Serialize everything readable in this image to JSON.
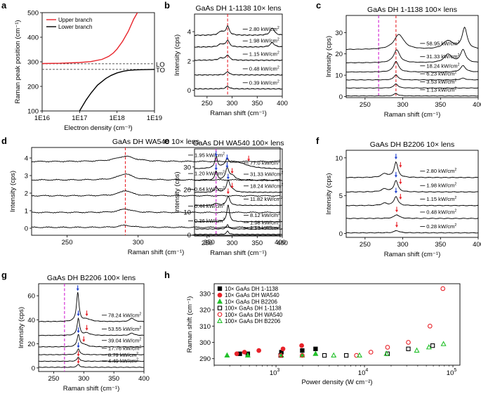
{
  "chart_data": [
    {
      "id": "a",
      "type": "line",
      "panel_label": "a",
      "title": "",
      "xlabel": "Electron density (cm⁻³)",
      "ylabel": "Raman peak position (cm⁻¹)",
      "xscale": "log",
      "xlim": [
        1e+16,
        1e+19
      ],
      "ylim": [
        100,
        500
      ],
      "xticks": [
        1e+16,
        1e+17,
        1e+18,
        1e+19
      ],
      "xtick_labels": [
        "1E16",
        "1E17",
        "1E18",
        "1E19"
      ],
      "yticks": [
        100,
        200,
        300,
        400,
        500
      ],
      "ytick_labels": [
        "100",
        "200",
        "300",
        "400",
        "500"
      ],
      "legend": [
        "Upper branch",
        "Lower branch"
      ],
      "legend_position": "top-left",
      "series": [
        {
          "name": "Upper branch",
          "color": "#e8232a",
          "x": [
            1e+16,
            3e+16,
            1e+17,
            2e+17,
            4e+17,
            6e+17,
            8e+17,
            1e+18,
            1.4e+18,
            2e+18,
            2.8e+18,
            3.5e+18
          ],
          "y": [
            293,
            294,
            297,
            301,
            310,
            322,
            336,
            352,
            383,
            424,
            474,
            500
          ]
        },
        {
          "name": "Lower branch",
          "color": "#000000",
          "x": [
            1e+17,
            1.5e+17,
            2e+17,
            3e+17,
            5e+17,
            7e+17,
            1e+18,
            1.5e+18,
            2e+18,
            3e+18,
            5e+18,
            1e+19
          ],
          "y": [
            100,
            145,
            172,
            205,
            232,
            245,
            255,
            262,
            265,
            267,
            268,
            269
          ]
        }
      ],
      "hlines": [
        {
          "label": "LO",
          "y": 292
        },
        {
          "label": "TO",
          "y": 269
        }
      ]
    },
    {
      "id": "b",
      "type": "line",
      "panel_label": "b",
      "title": "GaAs DH 1-1138 10× lens",
      "xlabel": "Raman shift (cm⁻¹)",
      "ylabel": "Intensity (cps)",
      "xlim": [
        225,
        400
      ],
      "ylim": [
        -0.4,
        5.2
      ],
      "xticks": [
        250,
        300,
        350,
        400
      ],
      "xtick_labels": [
        "250",
        "300",
        "350",
        "400"
      ],
      "yticks": [
        0,
        2,
        4
      ],
      "ytick_labels": [
        "0",
        "2",
        "4"
      ],
      "vlines": [
        {
          "x": 291,
          "color": "#e8232a"
        }
      ],
      "series": [
        {
          "label": "0.39 kW/cm",
          "offset": 0.1,
          "peaks": [
            [
              291,
              0.18,
              4
            ]
          ]
        },
        {
          "label": "0.48 kW/cm",
          "offset": 1.05,
          "peaks": [
            [
              291,
              0.22,
              4
            ]
          ]
        },
        {
          "label": "1.15 kW/cm",
          "offset": 2.05,
          "peaks": [
            [
              291,
              0.35,
              4
            ],
            [
              278,
              0.15,
              6
            ]
          ]
        },
        {
          "label": "1.98 kW/cm",
          "offset": 2.95,
          "peaks": [
            [
              291,
              0.45,
              4
            ],
            [
              278,
              0.2,
              6
            ],
            [
              380,
              0.3,
              5
            ]
          ]
        },
        {
          "label": "2.80 kW/cm",
          "offset": 3.75,
          "peaks": [
            [
              291,
              0.6,
              4
            ],
            [
              278,
              0.25,
              6
            ],
            [
              380,
              0.5,
              5
            ]
          ]
        }
      ]
    },
    {
      "id": "c",
      "type": "line",
      "panel_label": "c",
      "title": "GaAs DH 1-1138 100× lens",
      "xlabel": "Raman shift (cm⁻¹)",
      "ylabel": "Intensity (cps)",
      "xlim": [
        225,
        400
      ],
      "ylim": [
        -0.5,
        38
      ],
      "xticks": [
        250,
        300,
        350,
        400
      ],
      "xtick_labels": [
        "250",
        "300",
        "350",
        "400"
      ],
      "yticks": [
        0,
        10,
        20,
        30
      ],
      "ytick_labels": [
        "0",
        "10",
        "20",
        "30"
      ],
      "vlines": [
        {
          "x": 268,
          "color": "#d21fd2"
        },
        {
          "x": 291,
          "color": "#e8232a"
        }
      ],
      "series": [
        {
          "label": "1.13 kW/cm",
          "offset": 0.3,
          "peaks": [
            [
              291,
              1.2,
              3
            ]
          ]
        },
        {
          "label": "3.53 kW/cm",
          "offset": 4.0,
          "peaks": [
            [
              291,
              2.0,
              3
            ]
          ]
        },
        {
          "label": "6.23 kW/cm",
          "offset": 7.8,
          "peaks": [
            [
              291,
              2.5,
              3
            ],
            [
              380,
              0.8,
              4
            ]
          ]
        },
        {
          "label": "18.24 kW/cm",
          "offset": 11.5,
          "peaks": [
            [
              291,
              5,
              4
            ],
            [
              380,
              3,
              4
            ]
          ]
        },
        {
          "label": "31.33 kW/cm",
          "offset": 15.8,
          "peaks": [
            [
              292,
              6,
              5
            ],
            [
              360,
              4,
              6
            ],
            [
              380,
              6,
              4
            ]
          ]
        },
        {
          "label": "58.95 kW/cm",
          "offset": 22.0,
          "peaks": [
            [
              295,
              7,
              8
            ],
            [
              360,
              4,
              8
            ],
            [
              382,
              10,
              4
            ]
          ]
        }
      ]
    },
    {
      "id": "d",
      "type": "line",
      "panel_label": "d",
      "title": "GaAs DH WA540 10× lens",
      "xlabel": "Raman shift (cm⁻¹)",
      "ylabel": "Intensity (cps)",
      "xlim": [
        225,
        400
      ],
      "ylim": [
        -0.4,
        4.6
      ],
      "xticks": [
        250,
        300,
        350,
        400
      ],
      "xtick_labels": [
        "250",
        "300",
        "350",
        "400"
      ],
      "yticks": [
        0,
        1,
        2,
        3,
        4
      ],
      "ytick_labels": [
        "0",
        "1",
        "2",
        "3",
        "4"
      ],
      "vlines": [
        {
          "x": 291,
          "color": "#e8232a"
        }
      ],
      "series": [
        {
          "label": "0.36 kW/cm",
          "offset": 0.05,
          "peaks": [
            [
              291,
              0.12,
              5
            ]
          ]
        },
        {
          "label": "0.44 kW/cm",
          "offset": 0.9,
          "peaks": [
            [
              291,
              0.2,
              5
            ]
          ]
        },
        {
          "label": "0.64 kW/cm",
          "offset": 1.85,
          "peaks": [
            [
              291,
              0.3,
              5
            ]
          ]
        },
        {
          "label": "1.20 kW/cm",
          "offset": 2.75,
          "peaks": [
            [
              291,
              0.35,
              6
            ]
          ]
        },
        {
          "label": "1.95 kW/cm",
          "offset": 3.8,
          "peaks": [
            [
              291,
              0.3,
              8
            ]
          ]
        }
      ]
    },
    {
      "id": "e",
      "type": "line",
      "panel_label": "e",
      "title": "GaAs DH WA540 100× lens",
      "xlabel": "Raman shift (cm⁻¹)",
      "ylabel": "Intensity (cps)",
      "xlim": [
        225,
        400
      ],
      "ylim": [
        -0.5,
        38
      ],
      "xticks": [
        250,
        300,
        350,
        400
      ],
      "xtick_labels": [
        "250",
        "300",
        "350",
        "400"
      ],
      "yticks": [
        0,
        10,
        20,
        30
      ],
      "ytick_labels": [
        "0",
        "10",
        "20",
        "30"
      ],
      "vlines": [
        {
          "x": 268,
          "color": "#d21fd2"
        }
      ],
      "series": [
        {
          "label": "1.13 kW/cm",
          "offset": 0.2,
          "peaks": [
            [
              291,
              1.5,
              2.5
            ]
          ]
        },
        {
          "label": "1.98 kW/cm",
          "offset": 2.6,
          "peaks": [
            [
              291,
              2.0,
              2.5
            ]
          ]
        },
        {
          "label": "8.12 kW/cm",
          "offset": 5.8,
          "peaks": [
            [
              292,
              7.5,
              3
            ]
          ]
        },
        {
          "label": "11.82 kW/cm",
          "offset": 13.0,
          "peaks": [
            [
              292,
              4,
              4
            ],
            [
              268,
              1,
              4
            ]
          ]
        },
        {
          "label": "18.24 kW/cm",
          "offset": 18.8,
          "peaks": [
            [
              292,
              5,
              4
            ],
            [
              268,
              2.5,
              3
            ],
            [
              300,
              1,
              6
            ]
          ]
        },
        {
          "label": "31.33 kW/cm",
          "offset": 24.0,
          "peaks": [
            [
              290,
              5,
              4
            ],
            [
              268,
              4,
              3
            ],
            [
              300,
              2,
              8
            ]
          ]
        },
        {
          "label": "77.0 kW/cm",
          "offset": 29.0,
          "peaks": [
            [
              290,
              3,
              4
            ],
            [
              268,
              5,
              3
            ],
            [
              310,
              3,
              25
            ]
          ]
        }
      ]
    },
    {
      "id": "f",
      "type": "line",
      "panel_label": "f",
      "title": "GaAs DH B2206 10× lens",
      "xlabel": "Raman shift (cm⁻¹)",
      "ylabel": "Intensity (cps)",
      "xlim": [
        225,
        400
      ],
      "ylim": [
        -0.5,
        11
      ],
      "xticks": [
        250,
        300,
        350,
        400
      ],
      "xtick_labels": [
        "250",
        "300",
        "350",
        "400"
      ],
      "yticks": [
        0,
        5,
        10
      ],
      "ytick_labels": [
        "0",
        "5",
        "10"
      ],
      "series": [
        {
          "label": "0.28 kW/cm",
          "offset": 0.1,
          "peaks": [
            [
              292,
              0.3,
              4
            ]
          ]
        },
        {
          "label": "0.48 kW/cm",
          "offset": 2.0,
          "peaks": [
            [
              292,
              0.5,
              4
            ]
          ]
        },
        {
          "label": "1.15 kW/cm",
          "offset": 3.7,
          "peaks": [
            [
              291,
              1.2,
              3
            ],
            [
              276,
              0.3,
              5
            ]
          ]
        },
        {
          "label": "1.98 kW/cm",
          "offset": 5.5,
          "peaks": [
            [
              291,
              1.5,
              3
            ],
            [
              276,
              0.4,
              5
            ]
          ]
        },
        {
          "label": "2.80 kW/cm",
          "offset": 7.4,
          "peaks": [
            [
              291,
              2.0,
              3
            ],
            [
              276,
              0.5,
              5
            ]
          ]
        }
      ]
    },
    {
      "id": "g",
      "type": "line",
      "panel_label": "g",
      "title": "GaAs DH B2206 100× lens",
      "xlabel": "Raman shift (cm⁻¹)",
      "ylabel": "Intensity (cps)",
      "xlim": [
        225,
        400
      ],
      "ylim": [
        -3,
        70
      ],
      "xticks": [
        250,
        300,
        350,
        400
      ],
      "xtick_labels": [
        "250",
        "300",
        "350",
        "400"
      ],
      "yticks": [
        0,
        20,
        40,
        60
      ],
      "ytick_labels": [
        "0",
        "20",
        "40",
        "60"
      ],
      "vlines": [
        {
          "x": 268,
          "color": "#d21fd2"
        }
      ],
      "series": [
        {
          "label": "4.49 kW/cm",
          "offset": 0.5,
          "peaks": [
            [
              291,
              2.5,
              2.5
            ]
          ]
        },
        {
          "label": "8.79 kW/cm",
          "offset": 5.5,
          "peaks": [
            [
              291,
              3.5,
              2.5
            ]
          ]
        },
        {
          "label": "17.76 kW/cm",
          "offset": 11.0,
          "peaks": [
            [
              291,
              5,
              2.5
            ]
          ]
        },
        {
          "label": "39.04 kW/cm",
          "offset": 17.5,
          "peaks": [
            [
              291,
              10,
              2.5
            ],
            [
              300,
              2,
              6
            ]
          ]
        },
        {
          "label": "53.55 kW/cm",
          "offset": 27.0,
          "peaks": [
            [
              291,
              14,
              2.5
            ],
            [
              305,
              2,
              6
            ],
            [
              380,
              2,
              4
            ]
          ]
        },
        {
          "label": "78.24 kW/cm",
          "offset": 38.5,
          "peaks": [
            [
              290,
              24,
              2.5
            ],
            [
              305,
              2,
              8
            ],
            [
              380,
              3,
              4
            ]
          ]
        }
      ]
    },
    {
      "id": "h",
      "type": "scatter",
      "panel_label": "h",
      "title": "",
      "xlabel": "Power density (W cm⁻²)",
      "ylabel": "Raman shift (cm⁻¹)",
      "xscale": "log",
      "xlim": [
        200,
        120000
      ],
      "ylim": [
        286,
        336
      ],
      "xticks": [
        1000,
        10000,
        100000
      ],
      "yticks": [
        290,
        300,
        310,
        320,
        330
      ],
      "ytick_labels": [
        "290",
        "300",
        "310",
        "320",
        "330"
      ],
      "legend_position": "top-left",
      "series": [
        {
          "name": "10× GaAs DH 1-1138",
          "marker": "square",
          "filled": true,
          "color": "#000000",
          "x": [
            390,
            480,
            1150,
            1980,
            2800
          ],
          "y": [
            293,
            293,
            294,
            295,
            296
          ]
        },
        {
          "name": "10× GaAs DH WA540",
          "marker": "circle",
          "filled": true,
          "color": "#e8232a",
          "x": [
            360,
            440,
            640,
            1200,
            1950
          ],
          "y": [
            293,
            294,
            295,
            296,
            298
          ]
        },
        {
          "name": "10× GaAs DH B2206",
          "marker": "triangle",
          "filled": true,
          "color": "#22c02a",
          "x": [
            280,
            480,
            1150,
            1980,
            2800
          ],
          "y": [
            292,
            292,
            292,
            292,
            293
          ]
        },
        {
          "name": "100× GaAs DH 1-1138",
          "marker": "square",
          "filled": false,
          "color": "#000000",
          "x": [
            1130,
            3530,
            6230,
            18240,
            31330,
            58950
          ],
          "y": [
            292,
            292,
            292,
            293,
            296,
            298
          ]
        },
        {
          "name": "100× GaAs DH WA540",
          "marker": "circle",
          "filled": false,
          "color": "#e8232a",
          "x": [
            1130,
            1980,
            8120,
            11820,
            18240,
            31330,
            55000,
            77000
          ],
          "y": [
            292,
            292,
            292,
            294,
            297,
            300,
            310,
            333
          ]
        },
        {
          "name": "100× GaAs DH B2206",
          "marker": "triangle",
          "filled": false,
          "color": "#22c02a",
          "x": [
            4490,
            8790,
            17760,
            39040,
            53550,
            78240
          ],
          "y": [
            292,
            292,
            293,
            295,
            297,
            299
          ]
        }
      ]
    }
  ]
}
